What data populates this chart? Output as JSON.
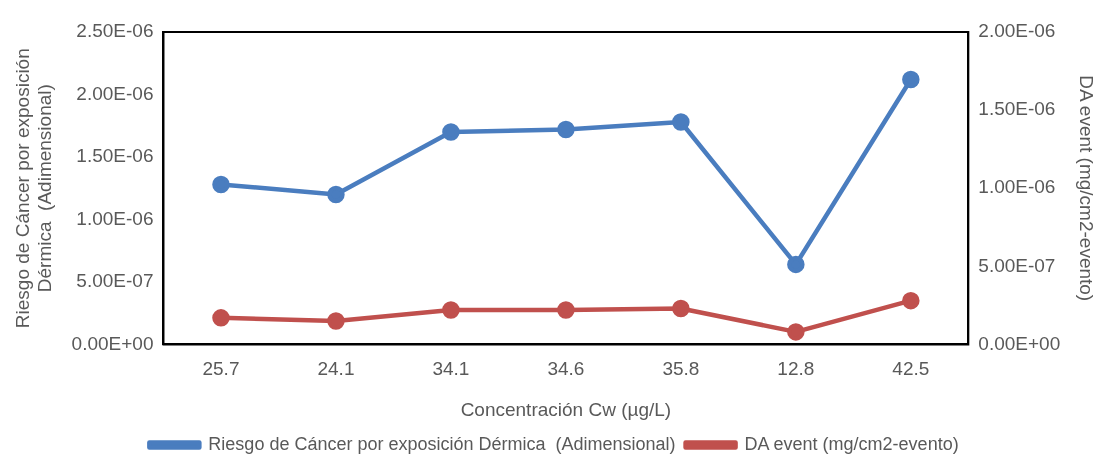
{
  "chart_data": {
    "type": "line",
    "xlabel": "Concentración Cw (µg/L)",
    "ylabel": "Riesgo de Cáncer por exposición Dérmica  (Adimensional)",
    "y2label": "DA event (mg/cm2-evento)",
    "categories": [
      "25.7",
      "24.1",
      "34.1",
      "34.6",
      "35.8",
      "12.8",
      "42.5"
    ],
    "series": [
      {
        "name": "Riesgo de Cáncer por exposición Dérmica  (Adimensional)",
        "color": "#4a7dbf",
        "values": [
          1.28e-06,
          1.2e-06,
          1.7e-06,
          1.72e-06,
          1.78e-06,
          6.4e-07,
          2.12e-06
        ]
      },
      {
        "name": "DA event (mg/cm2-evento)",
        "color": "#c0504d",
        "axis": "y2",
        "values": [
          1.7e-07,
          1.5e-07,
          2.2e-07,
          2.2e-07,
          2.3e-07,
          8e-08,
          2.8e-07
        ]
      }
    ],
    "ylim": [
      0,
      2.5e-06
    ],
    "yticks": [
      {
        "value": 0,
        "label": "0.00E+00"
      },
      {
        "value": 5e-07,
        "label": "5.00E-07"
      },
      {
        "value": 1e-06,
        "label": "1.00E-06"
      },
      {
        "value": 1.5e-06,
        "label": "1.50E-06"
      },
      {
        "value": 2e-06,
        "label": "2.00E-06"
      },
      {
        "value": 2.5e-06,
        "label": "2.50E-06"
      }
    ],
    "y2lim": [
      0,
      2e-06
    ],
    "y2ticks": [
      {
        "value": 0,
        "label": "0.00E+00"
      },
      {
        "value": 5e-07,
        "label": "5.00E-07"
      },
      {
        "value": 1e-06,
        "label": "1.00E-06"
      },
      {
        "value": 1.5e-06,
        "label": "1.50E-06"
      },
      {
        "value": 2e-06,
        "label": "2.00E-06"
      }
    ],
    "grid": false,
    "legend": "bottom",
    "marker": "circle",
    "line_style": "solid"
  }
}
